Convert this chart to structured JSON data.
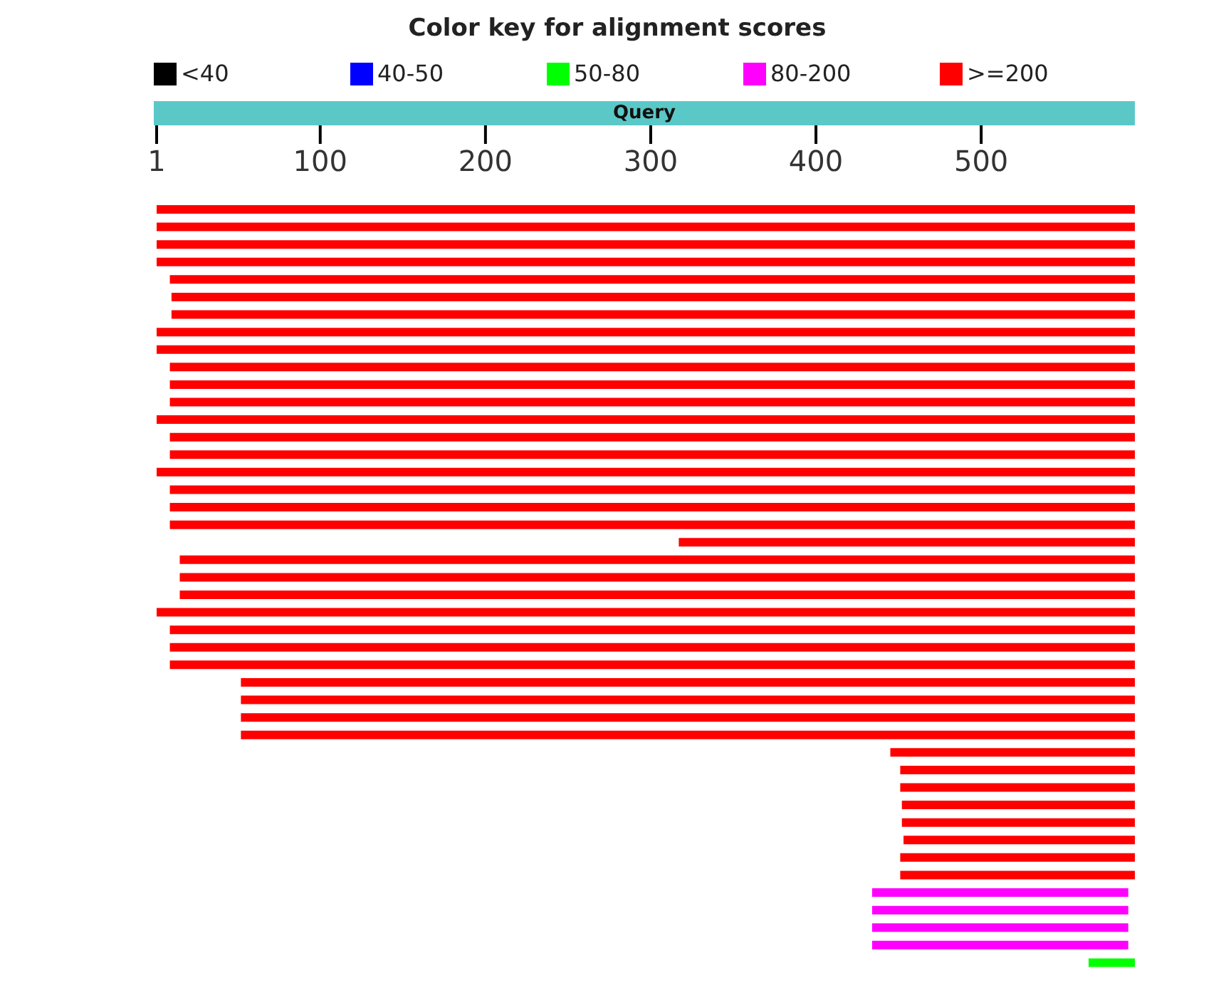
{
  "chart_data": {
    "type": "bar",
    "orientation": "horizontal",
    "title": "Color key for alignment scores",
    "annotations": [
      "<40",
      "40-50",
      "50-80",
      "80-200",
      ">=200",
      "Query"
    ],
    "categories": [
      null,
      null,
      null,
      null,
      null,
      null,
      null,
      null,
      null,
      null,
      null,
      null,
      null,
      null,
      null,
      null,
      null,
      null,
      null,
      null,
      null,
      null,
      null,
      null,
      null,
      null,
      null,
      null,
      null,
      null,
      null,
      null,
      null,
      null,
      null,
      null,
      null,
      null,
      null,
      null,
      null,
      null,
      null,
      null
    ],
    "base": [
      1,
      1,
      1,
      1,
      9,
      10,
      10,
      1,
      1,
      9,
      9,
      9,
      1,
      9,
      9,
      1,
      9,
      9,
      9,
      317,
      15,
      15,
      15,
      1,
      9,
      9,
      9,
      52,
      52,
      52,
      52,
      445,
      451,
      451,
      452,
      452,
      453,
      451,
      451,
      434,
      434,
      434,
      434,
      565
    ],
    "values": [
      592,
      592,
      592,
      592,
      584,
      583,
      583,
      592,
      592,
      584,
      584,
      584,
      592,
      584,
      584,
      592,
      584,
      584,
      584,
      276,
      578,
      578,
      578,
      592,
      584,
      584,
      584,
      541,
      541,
      541,
      541,
      148,
      142,
      142,
      141,
      141,
      140,
      142,
      142,
      155,
      155,
      155,
      155,
      28
    ],
    "colors": [
      "#ff0000",
      "#ff0000",
      "#ff0000",
      "#ff0000",
      "#ff0000",
      "#ff0000",
      "#ff0000",
      "#ff0000",
      "#ff0000",
      "#ff0000",
      "#ff0000",
      "#ff0000",
      "#ff0000",
      "#ff0000",
      "#ff0000",
      "#ff0000",
      "#ff0000",
      "#ff0000",
      "#ff0000",
      "#ff0000",
      "#ff0000",
      "#ff0000",
      "#ff0000",
      "#ff0000",
      "#ff0000",
      "#ff0000",
      "#ff0000",
      "#ff0000",
      "#ff0000",
      "#ff0000",
      "#ff0000",
      "#ff0000",
      "#ff0000",
      "#ff0000",
      "#ff0000",
      "#ff0000",
      "#ff0000",
      "#ff0000",
      "#ff0000",
      "#ff00ff",
      "#ff00ff",
      "#ff00ff",
      "#ff00ff",
      "#00ff00"
    ],
    "xlim": [
      1,
      593
    ],
    "xticks": [
      1,
      100,
      200,
      300,
      400,
      500
    ]
  }
}
